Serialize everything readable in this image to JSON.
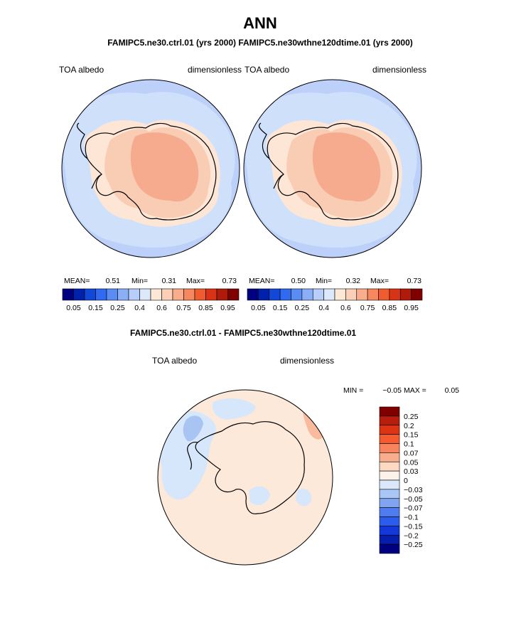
{
  "page": {
    "title": "ANN",
    "subtitle": "FAMIPC5.ne30.ctrl.01 (yrs 2000)   FAMIPC5.ne30wthne120dtime.01 (yrs 2000)",
    "diff_title": "FAMIPC5.ne30.ctrl.01 - FAMIPC5.ne30wthne120dtime.01"
  },
  "colors": {
    "ocean_mid": "#bcd0fa",
    "ice_edge": "#cfe0fb",
    "coast_band": "#fde6d6",
    "shelf": "#f9cdb4",
    "plateau": "#f7ab8e",
    "land_outline": "#000000",
    "diff_bg": "#fde9da",
    "diff_pos": "#f9bb9c",
    "diff_neg": "#d6e6fb",
    "diff_neg_strong": "#a8c4f2"
  },
  "chart_data": [
    {
      "type": "heatmap",
      "name": "ctrl",
      "field": "TOA albedo",
      "units": "dimensionless",
      "stats": {
        "mean_label": "MEAN=",
        "mean": "0.51",
        "min_label": "Min=",
        "min": "0.31",
        "max_label": "Max=",
        "max": "0.73"
      },
      "colorbar": {
        "colors": [
          "#000080",
          "#0022aa",
          "#1148d8",
          "#2f6af1",
          "#5b8cf4",
          "#8aaff6",
          "#b7cefa",
          "#dce9fb",
          "#fde8d7",
          "#fbd0b7",
          "#f8ad8d",
          "#f6875f",
          "#f15b30",
          "#d83316",
          "#b01a0a",
          "#800000"
        ],
        "tick_labels": [
          "0.05",
          "0.15",
          "0.25",
          "0.4",
          "0.6",
          "0.75",
          "0.85",
          "0.95"
        ]
      }
    },
    {
      "type": "heatmap",
      "name": "test",
      "field": "TOA albedo",
      "units": "dimensionless",
      "stats": {
        "mean_label": "MEAN=",
        "mean": "0.50",
        "min_label": "Min=",
        "min": "0.32",
        "max_label": "Max=",
        "max": "0.73"
      },
      "colorbar": {
        "colors": [
          "#000080",
          "#0022aa",
          "#1148d8",
          "#2f6af1",
          "#5b8cf4",
          "#8aaff6",
          "#b7cefa",
          "#dce9fb",
          "#fde8d7",
          "#fbd0b7",
          "#f8ad8d",
          "#f6875f",
          "#f15b30",
          "#d83316",
          "#b01a0a",
          "#800000"
        ],
        "tick_labels": [
          "0.05",
          "0.15",
          "0.25",
          "0.4",
          "0.6",
          "0.75",
          "0.85",
          "0.95"
        ]
      }
    },
    {
      "type": "heatmap",
      "name": "difference",
      "field": "TOA albedo",
      "units": "dimensionless",
      "stats": {
        "min_label": "MIN =",
        "min": "−0.05",
        "max_label": "MAX =",
        "max": "0.05"
      },
      "colorbar": {
        "colors": [
          "#800000",
          "#b81c0b",
          "#dd3514",
          "#f55b2e",
          "#f7845e",
          "#f9ad8c",
          "#fdd9c4",
          "#fdf2ea",
          "#dbe8fb",
          "#aac6f5",
          "#7ea4f2",
          "#4f7df0",
          "#2a5cee",
          "#1238d9",
          "#071dac",
          "#000080"
        ],
        "tick_labels": [
          "0.25",
          "0.2",
          "0.15",
          "0.1",
          "0.07",
          "0.05",
          "0.03",
          "0",
          "−0.03",
          "−0.05",
          "−0.07",
          "−0.1",
          "−0.15",
          "−0.2",
          "−0.25"
        ]
      }
    }
  ]
}
